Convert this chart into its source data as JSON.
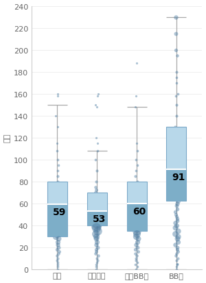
{
  "categories": [
    "洁面",
    "男士洁面",
    "男士BB霜",
    "BB霜"
  ],
  "ylabel": "售价",
  "ylim": [
    0,
    240
  ],
  "yticks": [
    0,
    20,
    40,
    60,
    80,
    100,
    120,
    140,
    160,
    180,
    200,
    220,
    240
  ],
  "medians": [
    59,
    53,
    60,
    91
  ],
  "boxes": [
    {
      "q1": 30,
      "q3": 80,
      "med": 59,
      "whislo": 0,
      "whishi": 150
    },
    {
      "q1": 40,
      "q3": 70,
      "med": 53,
      "whislo": 0,
      "whishi": 108
    },
    {
      "q1": 35,
      "q3": 80,
      "med": 60,
      "whislo": 0,
      "whishi": 148
    },
    {
      "q1": 62,
      "q3": 130,
      "med": 91,
      "whislo": 0,
      "whishi": 230
    }
  ],
  "box_facecolor_lower": "#7daec8",
  "box_facecolor_upper": "#b8d8ea",
  "box_edgecolor": "#7aa8c8",
  "median_linecolor": "#ffffff",
  "whisker_color": "#aaaaaa",
  "dot_color": "#4a7aa0",
  "dot_alpha": 0.45,
  "scatter_data": [
    {
      "vals": [
        0,
        2,
        4,
        6,
        8,
        10,
        12,
        14,
        16,
        18,
        20,
        22,
        25,
        28,
        30,
        32,
        35,
        38,
        40,
        42,
        44,
        46,
        48,
        50,
        52,
        55,
        58,
        60,
        62,
        65,
        68,
        70,
        72,
        75,
        78,
        80,
        85,
        90,
        95,
        100,
        108,
        115,
        130,
        140,
        158,
        160
      ],
      "sizes": [
        4,
        4,
        4,
        4,
        5,
        5,
        6,
        6,
        7,
        8,
        10,
        12,
        15,
        18,
        25,
        35,
        45,
        55,
        65,
        75,
        80,
        75,
        65,
        55,
        45,
        35,
        25,
        18,
        15,
        12,
        10,
        8,
        7,
        6,
        5,
        5,
        5,
        4,
        4,
        4,
        4,
        3,
        3,
        3,
        3,
        3
      ]
    },
    {
      "vals": [
        0,
        2,
        4,
        6,
        8,
        10,
        12,
        14,
        16,
        18,
        20,
        22,
        25,
        28,
        30,
        32,
        35,
        38,
        40,
        42,
        44,
        46,
        48,
        50,
        52,
        55,
        58,
        60,
        62,
        65,
        68,
        70,
        72,
        75,
        80,
        90,
        100,
        108,
        115,
        120,
        148,
        150,
        158,
        160
      ],
      "sizes": [
        4,
        4,
        4,
        4,
        5,
        5,
        6,
        6,
        7,
        8,
        10,
        12,
        15,
        18,
        25,
        35,
        45,
        55,
        65,
        75,
        80,
        75,
        65,
        55,
        45,
        35,
        25,
        18,
        15,
        12,
        10,
        8,
        7,
        6,
        5,
        5,
        4,
        4,
        3,
        3,
        3,
        3,
        3,
        3
      ]
    },
    {
      "vals": [
        0,
        2,
        4,
        6,
        8,
        10,
        12,
        14,
        16,
        18,
        20,
        22,
        25,
        28,
        30,
        32,
        35,
        38,
        40,
        42,
        44,
        46,
        48,
        50,
        52,
        55,
        58,
        60,
        62,
        65,
        68,
        70,
        72,
        75,
        78,
        80,
        85,
        90,
        95,
        100,
        108,
        115,
        148,
        158,
        188
      ],
      "sizes": [
        4,
        4,
        4,
        4,
        5,
        5,
        6,
        6,
        7,
        8,
        10,
        12,
        15,
        18,
        25,
        35,
        45,
        55,
        70,
        85,
        100,
        85,
        70,
        55,
        45,
        35,
        25,
        18,
        15,
        12,
        10,
        8,
        7,
        6,
        5,
        5,
        5,
        4,
        4,
        4,
        4,
        3,
        3,
        3,
        3
      ]
    },
    {
      "vals": [
        0,
        2,
        4,
        5,
        8,
        10,
        12,
        14,
        16,
        18,
        20,
        22,
        25,
        28,
        30,
        32,
        35,
        38,
        40,
        42,
        44,
        46,
        48,
        50,
        52,
        55,
        58,
        60,
        62,
        65,
        68,
        70,
        72,
        75,
        78,
        80,
        85,
        90,
        91,
        95,
        100,
        105,
        108,
        115,
        120,
        130,
        140,
        150,
        158,
        160,
        170,
        175,
        180,
        195,
        200,
        215,
        230
      ],
      "sizes": [
        4,
        4,
        4,
        4,
        5,
        5,
        6,
        6,
        7,
        8,
        10,
        12,
        15,
        18,
        20,
        22,
        20,
        18,
        15,
        12,
        10,
        9,
        8,
        8,
        8,
        9,
        10,
        12,
        15,
        18,
        20,
        22,
        20,
        18,
        15,
        12,
        10,
        8,
        12,
        8,
        7,
        6,
        5,
        5,
        5,
        5,
        5,
        5,
        4,
        4,
        4,
        4,
        5,
        6,
        8,
        10,
        12
      ]
    }
  ],
  "background_color": "#ffffff",
  "label_fontsize": 8,
  "tick_fontsize": 8,
  "median_fontsize": 10
}
